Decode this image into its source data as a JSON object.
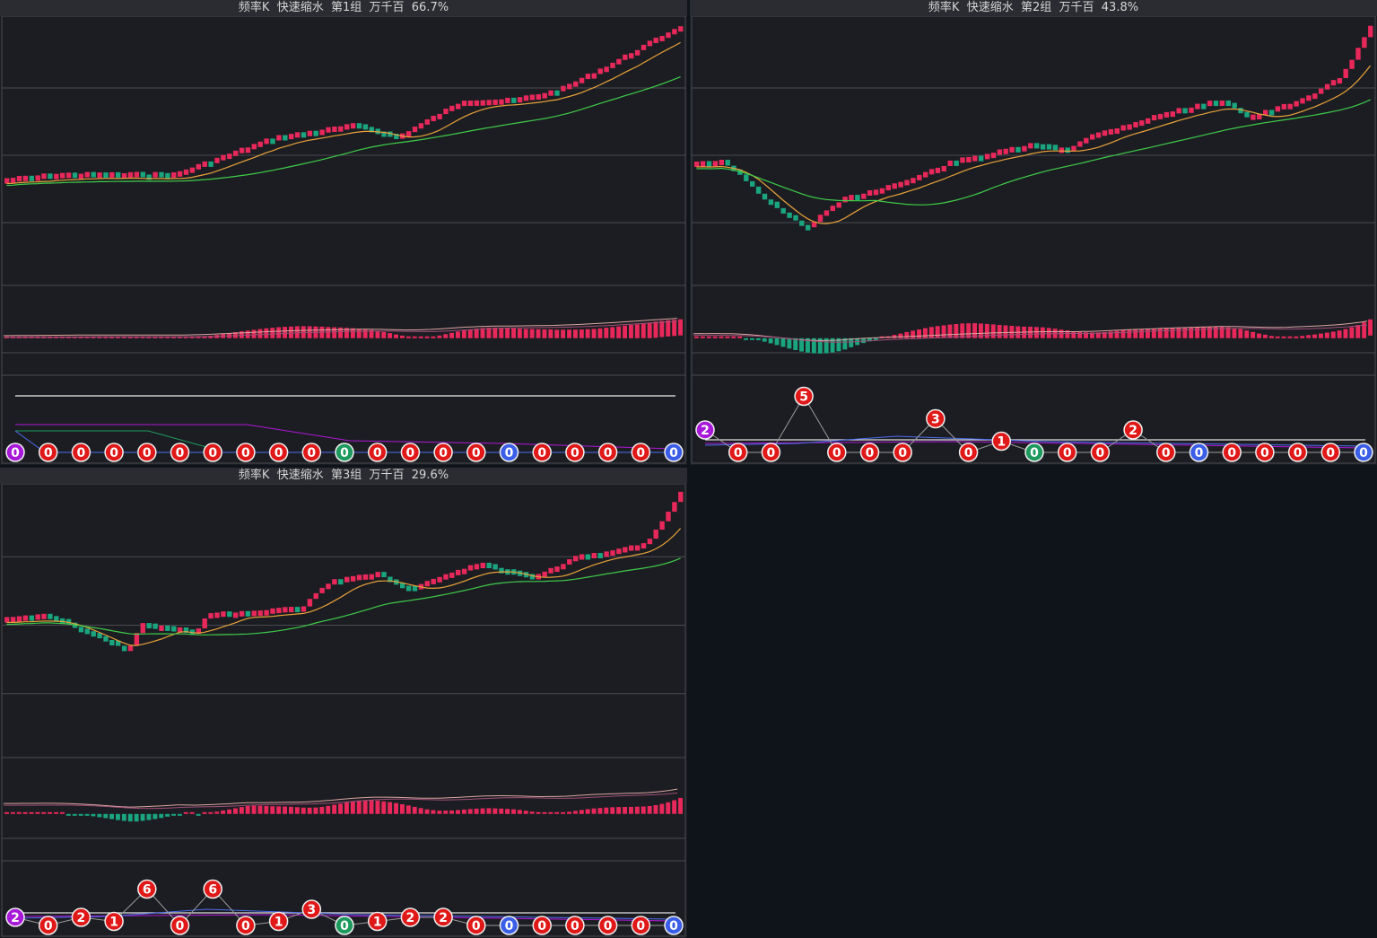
{
  "colors": {
    "up": "#e8285a",
    "down": "#1aa57f",
    "ma_fast": "#e8a23a",
    "ma_slow": "#3fcc4a",
    "grid": "#4a4b50",
    "bg": "#1c1d22",
    "header": "#2b2c31"
  },
  "panels": [
    {
      "title": "频率K  快速缩水  第1组  万千百  66.7%",
      "badges": [
        {
          "value": "0",
          "color": "purple",
          "level": 0
        },
        {
          "value": "0",
          "color": "red",
          "level": 0
        },
        {
          "value": "0",
          "color": "red",
          "level": 0
        },
        {
          "value": "0",
          "color": "red",
          "level": 0
        },
        {
          "value": "0",
          "color": "red",
          "level": 0
        },
        {
          "value": "0",
          "color": "red",
          "level": 0
        },
        {
          "value": "0",
          "color": "red",
          "level": 0
        },
        {
          "value": "0",
          "color": "red",
          "level": 0
        },
        {
          "value": "0",
          "color": "red",
          "level": 0
        },
        {
          "value": "0",
          "color": "red",
          "level": 0
        },
        {
          "value": "0",
          "color": "green",
          "level": 0
        },
        {
          "value": "0",
          "color": "red",
          "level": 0
        },
        {
          "value": "0",
          "color": "red",
          "level": 0
        },
        {
          "value": "0",
          "color": "red",
          "level": 0
        },
        {
          "value": "0",
          "color": "red",
          "level": 0
        },
        {
          "value": "0",
          "color": "blue",
          "level": 0
        },
        {
          "value": "0",
          "color": "red",
          "level": 0
        },
        {
          "value": "0",
          "color": "red",
          "level": 0
        },
        {
          "value": "0",
          "color": "red",
          "level": 0
        },
        {
          "value": "0",
          "color": "red",
          "level": 0
        },
        {
          "value": "0",
          "color": "blue",
          "level": 0
        }
      ]
    },
    {
      "title": "频率K  快速缩水  第2组  万千百  43.8%",
      "badges": [
        {
          "value": "2",
          "color": "purple",
          "level": 2
        },
        {
          "value": "0",
          "color": "red",
          "level": 0
        },
        {
          "value": "0",
          "color": "red",
          "level": 0
        },
        {
          "value": "5",
          "color": "red",
          "level": 5
        },
        {
          "value": "0",
          "color": "red",
          "level": 0
        },
        {
          "value": "0",
          "color": "red",
          "level": 0
        },
        {
          "value": "0",
          "color": "red",
          "level": 0
        },
        {
          "value": "3",
          "color": "red",
          "level": 3
        },
        {
          "value": "0",
          "color": "red",
          "level": 0
        },
        {
          "value": "1",
          "color": "red",
          "level": 1
        },
        {
          "value": "0",
          "color": "green",
          "level": 0
        },
        {
          "value": "0",
          "color": "red",
          "level": 0
        },
        {
          "value": "0",
          "color": "red",
          "level": 0
        },
        {
          "value": "2",
          "color": "red",
          "level": 2
        },
        {
          "value": "0",
          "color": "red",
          "level": 0
        },
        {
          "value": "0",
          "color": "blue",
          "level": 0
        },
        {
          "value": "0",
          "color": "red",
          "level": 0
        },
        {
          "value": "0",
          "color": "red",
          "level": 0
        },
        {
          "value": "0",
          "color": "red",
          "level": 0
        },
        {
          "value": "0",
          "color": "red",
          "level": 0
        },
        {
          "value": "0",
          "color": "blue",
          "level": 0
        }
      ]
    },
    {
      "title": "频率K  快速缩水  第3组  万千百  29.6%",
      "badges": [
        {
          "value": "2",
          "color": "purple",
          "level": 1
        },
        {
          "value": "0",
          "color": "red",
          "level": 0
        },
        {
          "value": "2",
          "color": "red",
          "level": 1
        },
        {
          "value": "1",
          "color": "red",
          "level": 0.5
        },
        {
          "value": "6",
          "color": "red",
          "level": 4.5
        },
        {
          "value": "0",
          "color": "red",
          "level": 0
        },
        {
          "value": "6",
          "color": "red",
          "level": 4.5
        },
        {
          "value": "0",
          "color": "red",
          "level": 0
        },
        {
          "value": "1",
          "color": "red",
          "level": 0.5
        },
        {
          "value": "3",
          "color": "red",
          "level": 2
        },
        {
          "value": "0",
          "color": "green",
          "level": 0
        },
        {
          "value": "1",
          "color": "red",
          "level": 0.5
        },
        {
          "value": "2",
          "color": "red",
          "level": 1
        },
        {
          "value": "2",
          "color": "red",
          "level": 1
        },
        {
          "value": "0",
          "color": "red",
          "level": 0
        },
        {
          "value": "0",
          "color": "blue",
          "level": 0
        },
        {
          "value": "0",
          "color": "red",
          "level": 0
        },
        {
          "value": "0",
          "color": "red",
          "level": 0
        },
        {
          "value": "0",
          "color": "red",
          "level": 0
        },
        {
          "value": "0",
          "color": "red",
          "level": 0
        },
        {
          "value": "0",
          "color": "blue",
          "level": 0
        }
      ]
    }
  ]
}
